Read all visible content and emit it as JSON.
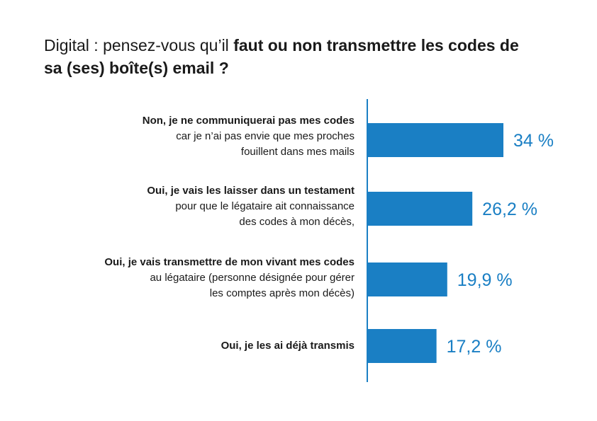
{
  "title": {
    "part_light": "Digital : pensez-vous qu’il ",
    "part_bold": "faut ou non transmettre les codes de sa (ses) boîte(s) email ?"
  },
  "colors": {
    "bar": "#1a7fc4",
    "value_text": "#1a7fc4",
    "axis": "#1a7fc4"
  },
  "chart_data": {
    "type": "bar",
    "orientation": "horizontal",
    "categories": [
      {
        "bold": "Non, je ne communiquerai pas mes codes",
        "line2": "car je n’ai pas envie que mes proches",
        "line3": "fouillent dans mes mails"
      },
      {
        "bold": "Oui, je vais les laisser dans un testament",
        "line2": "pour que le légataire ait connaissance",
        "line3": "des codes à mon décès,"
      },
      {
        "bold": "Oui, je vais transmettre de mon vivant mes codes",
        "line2": "au légataire (personne désignée pour gérer",
        "line3": "les comptes après mon décès)"
      },
      {
        "bold": "Oui, je les ai déjà transmis",
        "line2": "",
        "line3": ""
      }
    ],
    "values": [
      34,
      26.2,
      19.9,
      17.2
    ],
    "value_labels": [
      "34 %",
      "26,2 %",
      "19,9 %",
      "17,2 %"
    ],
    "xlim": [
      0,
      40
    ]
  }
}
